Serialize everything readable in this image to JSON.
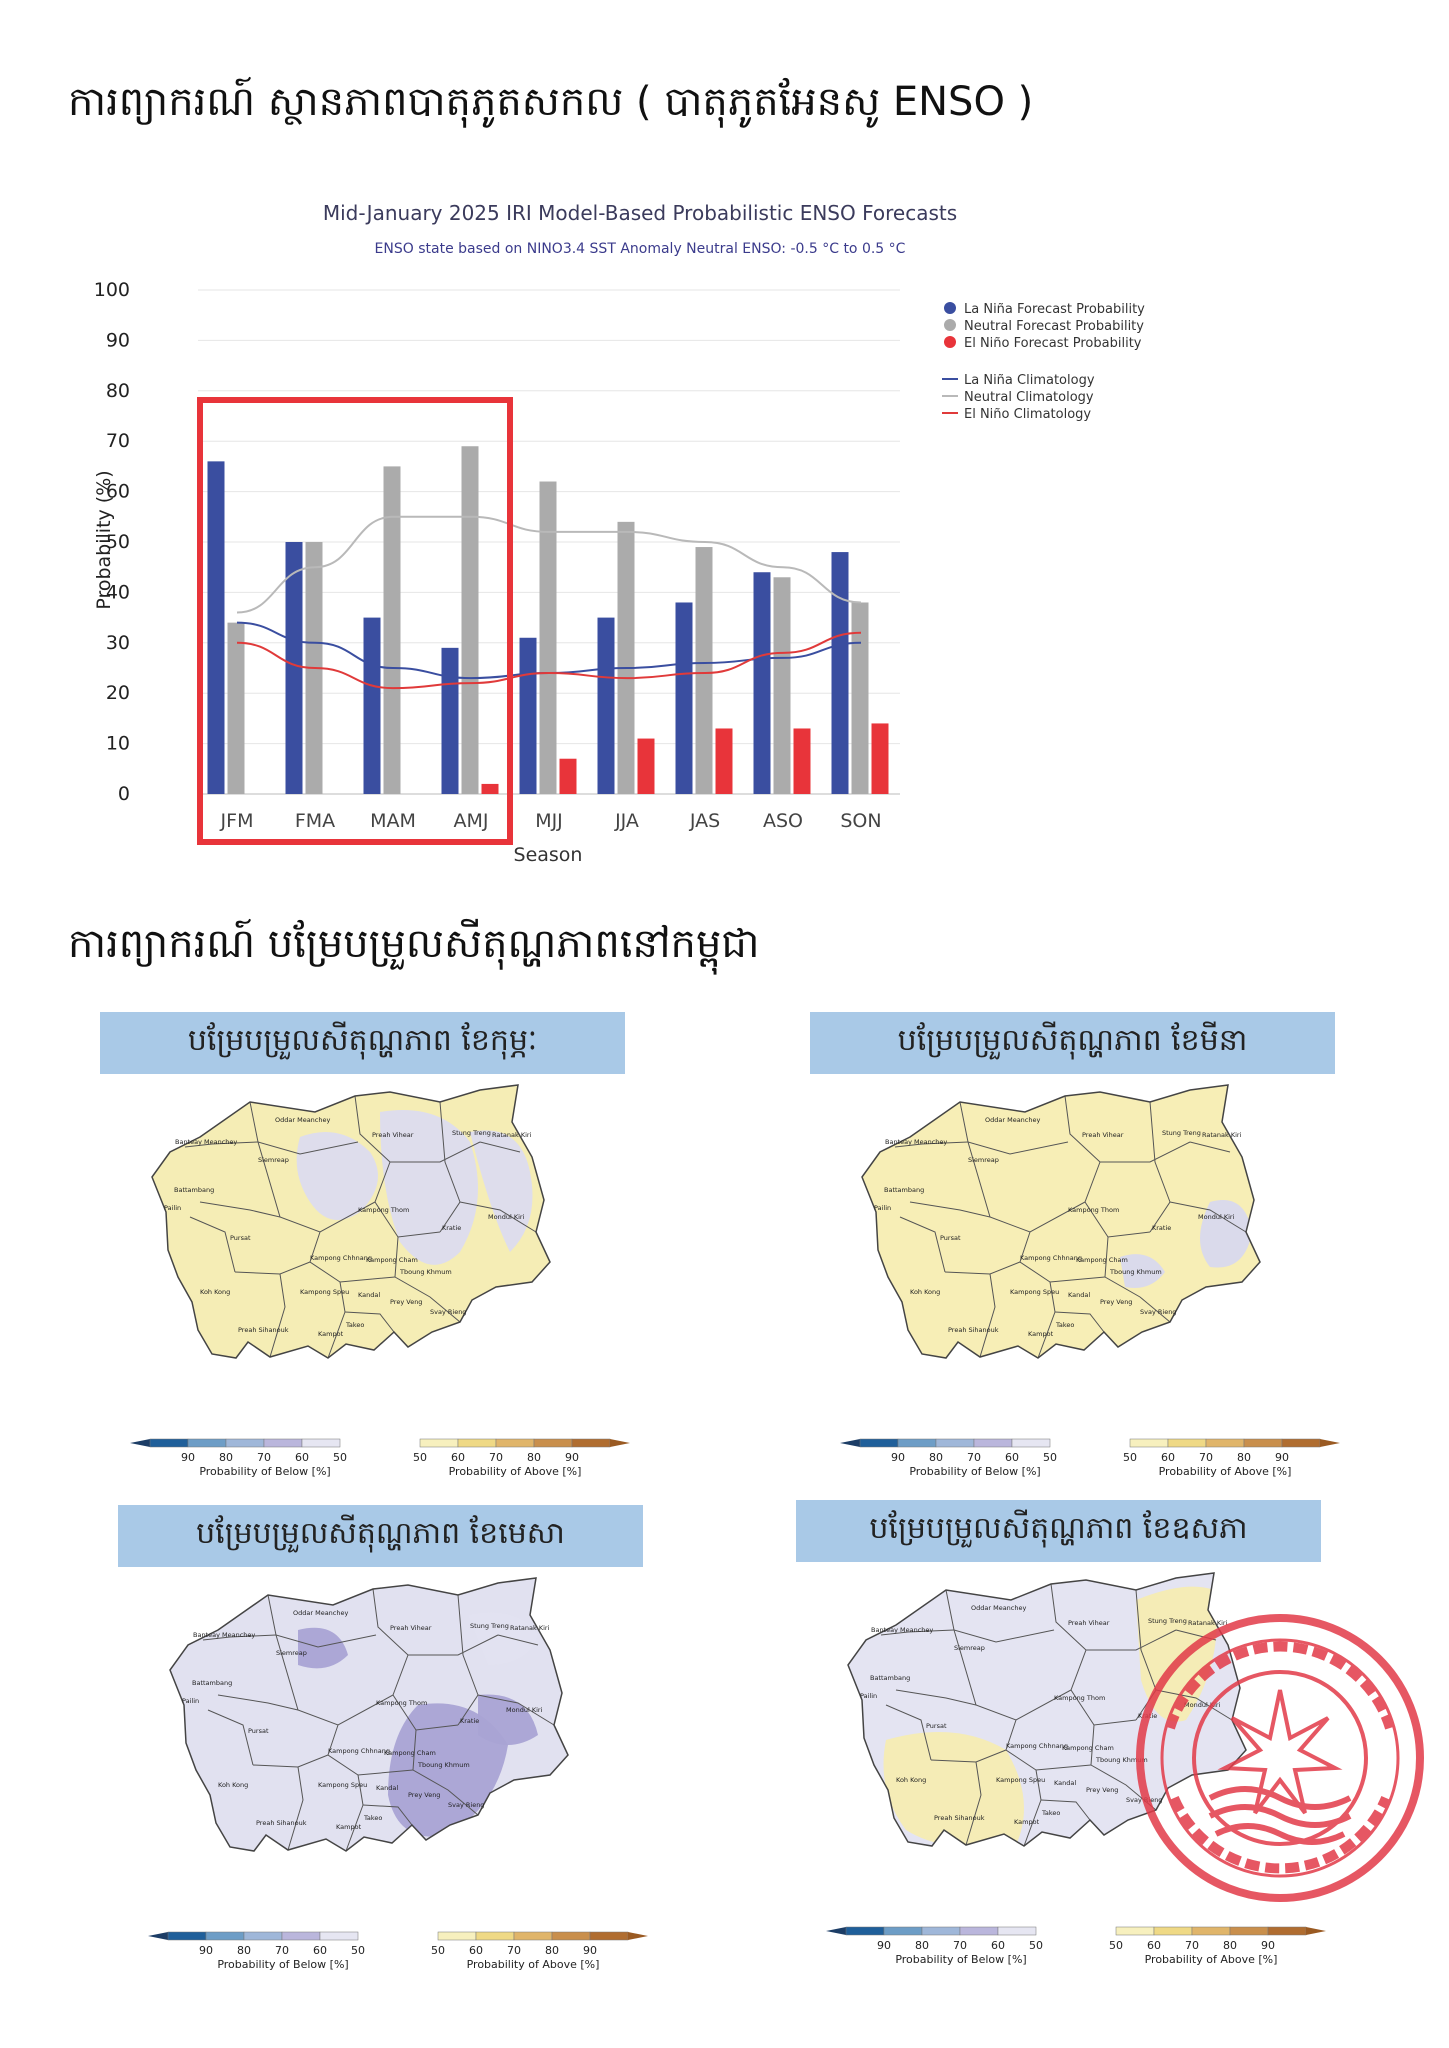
{
  "headings": {
    "enso": "ការព្យាករណ៍ ស្ថានភាពបាតុភូតសកល ( បាតុភូតអែនសូ ENSO )",
    "cambodia": "ការព្យាករណ៍ បម្រែបម្រួលសីតុណ្ហភាពនៅកម្ពុជា"
  },
  "chart_data": {
    "type": "bar",
    "title": "Mid-January 2025 IRI Model-Based Probabilistic ENSO Forecasts",
    "subtitle": "ENSO state based on NINO3.4 SST Anomaly Neutral ENSO: -0.5 °C to 0.5 °C",
    "xlabel": "Season",
    "ylabel": "Probability (%)",
    "ylim": [
      0,
      100
    ],
    "yticks": [
      "0",
      "10",
      "20",
      "30",
      "40",
      "50",
      "60",
      "70",
      "80",
      "90",
      "100"
    ],
    "grid": true,
    "legend_position": "right",
    "categories": [
      "JFM",
      "FMA",
      "MAM",
      "AMJ",
      "MJJ",
      "JJA",
      "JAS",
      "ASO",
      "SON"
    ],
    "highlight": [
      "JFM",
      "AMJ"
    ],
    "series": [
      {
        "name": "La Niña Forecast Probability",
        "color": "#3a4ea0",
        "values": [
          66,
          50,
          35,
          29,
          31,
          35,
          38,
          44,
          48
        ]
      },
      {
        "name": "Neutral Forecast Probability",
        "color": "#ababab",
        "values": [
          34,
          50,
          65,
          69,
          62,
          54,
          49,
          43,
          38
        ]
      },
      {
        "name": "El Niño Forecast Probability",
        "color": "#e8343a",
        "values": [
          0,
          0,
          0,
          2,
          7,
          11,
          13,
          13,
          14
        ]
      }
    ],
    "climatology": [
      {
        "name": "La Niña Climatology",
        "color": "#3a4ea0",
        "values": [
          34,
          30,
          25,
          23,
          24,
          25,
          26,
          27,
          30
        ]
      },
      {
        "name": "Neutral Climatology",
        "color": "#b9b9b9",
        "values": [
          36,
          45,
          55,
          55,
          52,
          52,
          50,
          45,
          38
        ]
      },
      {
        "name": "El Niño Climatology",
        "color": "#e03a3a",
        "values": [
          30,
          25,
          21,
          22,
          24,
          23,
          24,
          28,
          32
        ]
      }
    ]
  },
  "maps": [
    {
      "title": "បម្រែបម្រួលសីតុណ្ហភាព ខែកុម្ភៈ",
      "base": "#f5edb5",
      "blue": "#dcdcef"
    },
    {
      "title": "បម្រែបម្រួលសីតុណ្ហភាព ខែមីនា",
      "base": "#f7eeb6",
      "blue": "#d8d8ee"
    },
    {
      "title": "បម្រែបម្រួលសីតុណ្ហភាព ខែមេសា",
      "base": "#e1e1f0",
      "blue": "#a9a3d4"
    },
    {
      "title": "បម្រែបម្រួលសីតុណ្ហភាព ខែឧសភា",
      "base": "#e4e4f2",
      "blue": "#f5ecb2"
    }
  ],
  "provinces": [
    "Oddar Meanchey",
    "Banteay Meanchey",
    "Siemreap",
    "Preah Vihear",
    "Stung Treng",
    "Ratanak Kiri",
    "Battambang",
    "Pailin",
    "Kampong Thom",
    "Mondul Kiri",
    "Kratie",
    "Pursat",
    "Kampong Chhnang",
    "Kampong Cham",
    "Tboung Khmum",
    "Koh Kong",
    "Kampong Speu",
    "Kandal",
    "Prey Veng",
    "Svay Rieng",
    "Takeo",
    "Preah Sihanouk",
    "Kampot"
  ],
  "colorbar": {
    "below_ticks": [
      "90",
      "80",
      "70",
      "60",
      "50"
    ],
    "above_ticks": [
      "50",
      "60",
      "70",
      "80",
      "90"
    ],
    "below_label": "Probability of Below [%]",
    "above_label": "Probability of Above [%]",
    "below_colors": [
      "#1f5f9a",
      "#6d9dc6",
      "#9fb7d9",
      "#bab6dc",
      "#e6e6f2"
    ],
    "above_colors": [
      "#f7f0be",
      "#efd985",
      "#e0b56a",
      "#c98f4c",
      "#b06d30"
    ]
  }
}
